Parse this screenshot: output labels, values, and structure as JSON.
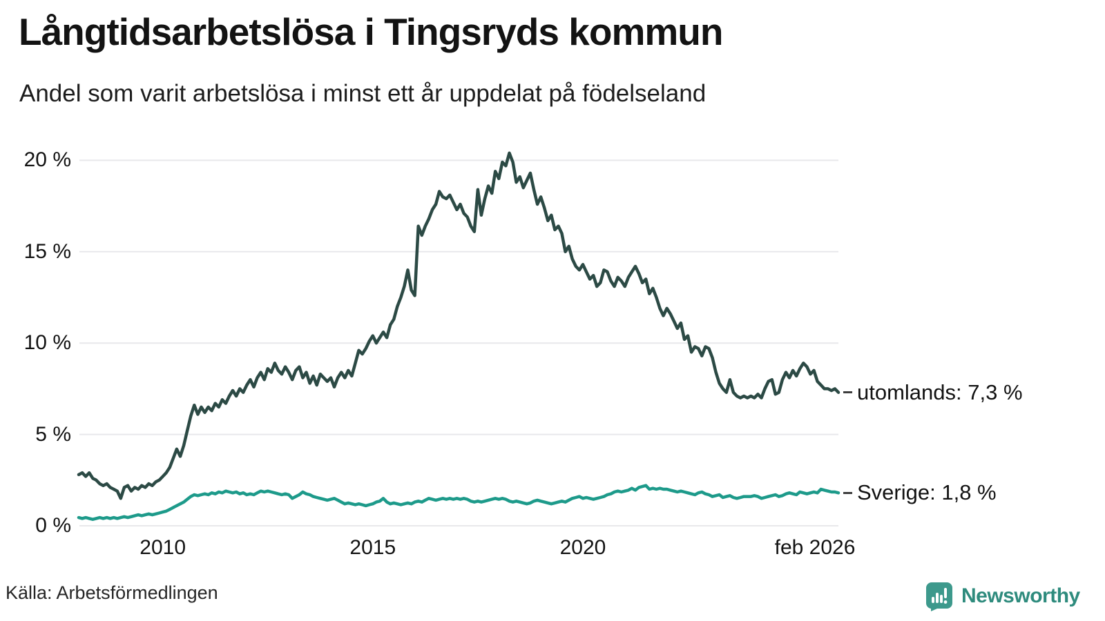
{
  "chart_data": {
    "type": "line",
    "title": "Långtidsarbetslösa i Tingsryds kommun",
    "subtitle": "Andel som varit arbetslösa i minst ett år uppdelat på födelseland",
    "source": "Källa: Arbetsförmedlingen",
    "x_start": "2008-01",
    "x_end": "2026-02",
    "frequency": "monthly",
    "grid": true,
    "ylim": [
      0,
      21
    ],
    "yticks": [
      {
        "label": "0 %",
        "value": 0
      },
      {
        "label": "5 %",
        "value": 5
      },
      {
        "label": "10 %",
        "value": 10
      },
      {
        "label": "15 %",
        "value": 15
      },
      {
        "label": "20 %",
        "value": 20
      }
    ],
    "xticks": [
      {
        "label": "2010",
        "year": 2010
      },
      {
        "label": "2015",
        "year": 2015
      },
      {
        "label": "2020",
        "year": 2020
      },
      {
        "label": "feb 2026",
        "year": 2026.0833
      }
    ],
    "series": [
      {
        "name": "utomlands",
        "label": "utomlands: 7,3 %",
        "last_value": 7.3,
        "color": "#2c4a45",
        "values": [
          2.8,
          2.9,
          2.7,
          2.9,
          2.6,
          2.5,
          2.3,
          2.2,
          2.3,
          2.1,
          2.0,
          1.9,
          1.5,
          2.1,
          2.2,
          1.9,
          2.1,
          2.0,
          2.2,
          2.1,
          2.3,
          2.2,
          2.4,
          2.5,
          2.7,
          2.9,
          3.2,
          3.7,
          4.2,
          3.8,
          4.4,
          5.2,
          6.0,
          6.6,
          6.1,
          6.5,
          6.2,
          6.5,
          6.3,
          6.7,
          6.5,
          6.9,
          6.7,
          7.1,
          7.4,
          7.1,
          7.5,
          7.3,
          7.7,
          8.0,
          7.6,
          8.1,
          8.4,
          8.0,
          8.6,
          8.4,
          8.9,
          8.5,
          8.3,
          8.7,
          8.4,
          8.0,
          8.5,
          8.7,
          8.1,
          8.4,
          7.8,
          8.2,
          7.7,
          8.3,
          8.1,
          7.9,
          8.1,
          7.6,
          8.1,
          8.4,
          8.1,
          8.5,
          8.2,
          8.9,
          9.6,
          9.4,
          9.7,
          10.1,
          10.4,
          10.0,
          10.3,
          10.6,
          10.3,
          11.0,
          11.3,
          12.0,
          12.5,
          13.1,
          14.0,
          12.9,
          12.6,
          16.4,
          15.9,
          16.4,
          16.8,
          17.3,
          17.6,
          18.3,
          18.0,
          17.9,
          18.1,
          17.7,
          17.3,
          17.6,
          17.1,
          16.9,
          16.4,
          16.1,
          18.4,
          17.0,
          17.9,
          18.6,
          18.2,
          19.4,
          19.0,
          19.9,
          19.7,
          20.4,
          19.9,
          18.8,
          19.1,
          18.5,
          18.9,
          19.3,
          18.4,
          17.6,
          18.0,
          17.4,
          16.7,
          17.0,
          16.2,
          16.4,
          16.0,
          15.0,
          15.3,
          14.6,
          14.2,
          14.0,
          14.3,
          13.9,
          13.5,
          13.7,
          13.1,
          13.3,
          14.0,
          13.9,
          13.4,
          13.1,
          13.6,
          13.4,
          13.1,
          13.6,
          13.9,
          14.2,
          13.8,
          13.3,
          13.5,
          12.7,
          13.0,
          12.5,
          11.9,
          11.5,
          11.9,
          11.6,
          11.2,
          10.8,
          11.1,
          10.2,
          10.4,
          9.5,
          9.8,
          9.7,
          9.3,
          9.8,
          9.7,
          9.2,
          8.4,
          7.8,
          7.5,
          7.3,
          8.0,
          7.3,
          7.1,
          7.0,
          7.1,
          7.0,
          7.1,
          7.0,
          7.2,
          7.0,
          7.5,
          7.9,
          8.0,
          7.2,
          7.3,
          8.0,
          8.4,
          8.1,
          8.5,
          8.2,
          8.6,
          8.9,
          8.7,
          8.3,
          8.5,
          7.9,
          7.7,
          7.5,
          7.5,
          7.4,
          7.5,
          7.3
        ]
      },
      {
        "name": "Sverige",
        "label": "Sverige: 1,8 %",
        "last_value": 1.8,
        "color": "#1d9a8a",
        "values": [
          0.45,
          0.4,
          0.45,
          0.4,
          0.35,
          0.4,
          0.45,
          0.4,
          0.45,
          0.4,
          0.45,
          0.4,
          0.45,
          0.5,
          0.45,
          0.5,
          0.55,
          0.6,
          0.55,
          0.6,
          0.65,
          0.6,
          0.65,
          0.7,
          0.75,
          0.8,
          0.9,
          1.0,
          1.1,
          1.2,
          1.3,
          1.45,
          1.6,
          1.7,
          1.65,
          1.7,
          1.75,
          1.7,
          1.8,
          1.75,
          1.85,
          1.8,
          1.9,
          1.85,
          1.8,
          1.85,
          1.75,
          1.8,
          1.7,
          1.75,
          1.7,
          1.8,
          1.9,
          1.85,
          1.9,
          1.85,
          1.8,
          1.75,
          1.7,
          1.75,
          1.7,
          1.5,
          1.6,
          1.7,
          1.85,
          1.75,
          1.7,
          1.6,
          1.55,
          1.5,
          1.45,
          1.4,
          1.45,
          1.5,
          1.4,
          1.3,
          1.2,
          1.25,
          1.2,
          1.15,
          1.2,
          1.15,
          1.1,
          1.15,
          1.2,
          1.3,
          1.35,
          1.5,
          1.3,
          1.2,
          1.25,
          1.2,
          1.15,
          1.2,
          1.25,
          1.2,
          1.3,
          1.35,
          1.3,
          1.4,
          1.5,
          1.45,
          1.4,
          1.45,
          1.5,
          1.45,
          1.5,
          1.45,
          1.5,
          1.45,
          1.5,
          1.45,
          1.35,
          1.3,
          1.35,
          1.3,
          1.35,
          1.4,
          1.45,
          1.5,
          1.45,
          1.5,
          1.45,
          1.35,
          1.3,
          1.35,
          1.3,
          1.25,
          1.2,
          1.25,
          1.35,
          1.4,
          1.35,
          1.3,
          1.25,
          1.2,
          1.25,
          1.3,
          1.35,
          1.3,
          1.4,
          1.5,
          1.55,
          1.6,
          1.5,
          1.55,
          1.5,
          1.45,
          1.5,
          1.55,
          1.6,
          1.7,
          1.75,
          1.85,
          1.9,
          1.85,
          1.9,
          1.95,
          2.05,
          1.95,
          2.1,
          2.15,
          2.2,
          2.0,
          2.05,
          2.0,
          2.05,
          2.0,
          2.0,
          1.95,
          1.9,
          1.85,
          1.9,
          1.85,
          1.8,
          1.75,
          1.7,
          1.8,
          1.85,
          1.75,
          1.7,
          1.6,
          1.65,
          1.7,
          1.55,
          1.6,
          1.65,
          1.55,
          1.5,
          1.55,
          1.6,
          1.6,
          1.6,
          1.65,
          1.6,
          1.5,
          1.55,
          1.6,
          1.65,
          1.7,
          1.6,
          1.65,
          1.75,
          1.8,
          1.75,
          1.7,
          1.85,
          1.8,
          1.75,
          1.8,
          1.85,
          1.8,
          2.0,
          1.95,
          1.9,
          1.85,
          1.85,
          1.8
        ]
      }
    ],
    "gridline_color": "#e8e8eb"
  },
  "branding": {
    "name": "Newsworthy",
    "logo_icon": "speech-bubble-bar-chart-icon",
    "text_color": "#2e8b7d",
    "icon_color": "#3d998c"
  }
}
